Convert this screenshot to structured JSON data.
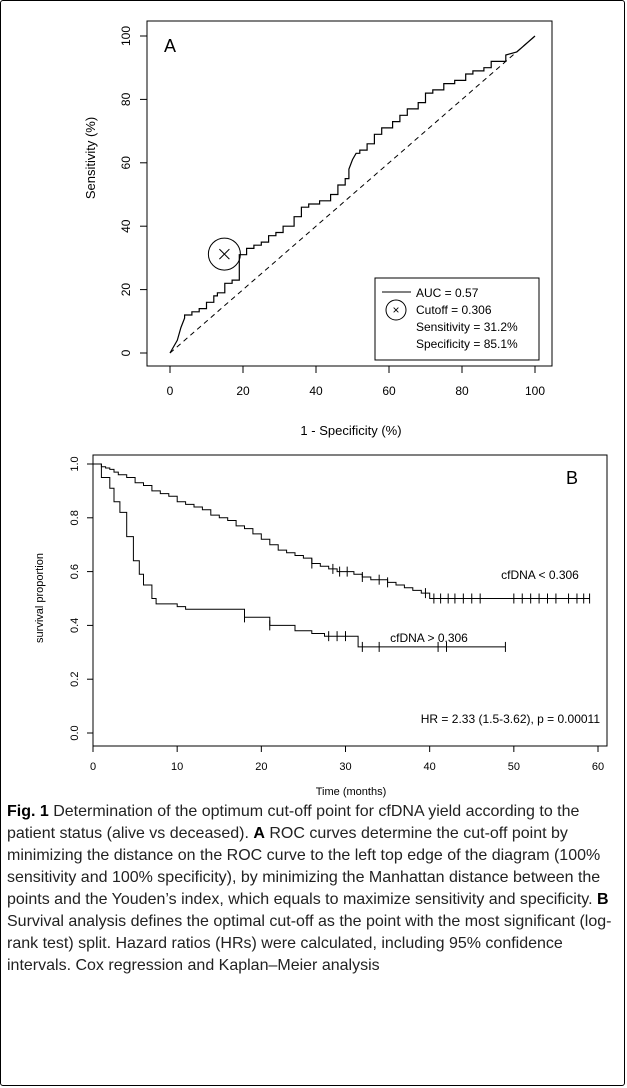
{
  "chart_data": [
    {
      "type": "line",
      "panel": "A",
      "xlabel": "1 - Specificity (%)",
      "ylabel": "Sensitivity (%)",
      "xlim": [
        0,
        100
      ],
      "ylim": [
        0,
        100
      ],
      "xticks": [
        "0",
        "20",
        "40",
        "60",
        "80",
        "100"
      ],
      "yticks": [
        "0",
        "20",
        "40",
        "60",
        "80",
        "100"
      ],
      "series": [
        {
          "x": [
            0,
            2,
            3,
            4,
            4,
            6,
            6,
            8,
            8,
            10,
            10,
            12,
            12,
            13,
            13,
            15,
            15,
            17,
            17,
            19,
            19,
            21,
            21,
            23,
            23,
            25,
            25,
            27,
            27,
            29,
            29,
            31,
            31,
            34,
            34,
            36,
            36,
            38,
            38,
            41,
            41,
            44,
            44,
            46,
            46,
            48,
            48,
            49,
            49,
            50,
            51,
            52,
            52,
            54,
            54,
            56,
            56,
            58,
            58,
            61,
            61,
            63,
            63,
            65,
            65,
            68,
            68,
            70,
            70,
            72,
            72,
            75,
            75,
            78,
            78,
            81,
            81,
            83,
            83,
            86,
            86,
            88,
            88,
            92,
            92,
            95,
            100
          ],
          "y": [
            0,
            4,
            8,
            11,
            12,
            12,
            13,
            13,
            14,
            14,
            16,
            16,
            18,
            18,
            19,
            19,
            22,
            22,
            23,
            23,
            31,
            31,
            33,
            33,
            34,
            34,
            35,
            35,
            37,
            37,
            38,
            38,
            40,
            40,
            43,
            43,
            46,
            46,
            47,
            47,
            48,
            48,
            50,
            50,
            53,
            53,
            55,
            55,
            58,
            61,
            63,
            63,
            64,
            64,
            66,
            66,
            69,
            69,
            71,
            71,
            73,
            73,
            75,
            75,
            77,
            77,
            79,
            79,
            82,
            82,
            83,
            83,
            85,
            85,
            86,
            86,
            88,
            88,
            89,
            89,
            90,
            90,
            92,
            92,
            94,
            95,
            100
          ]
        }
      ],
      "reference_line": {
        "x": [
          0,
          100
        ],
        "y": [
          0,
          100
        ],
        "style": "dashed"
      },
      "cutoff_point": {
        "x": 14.9,
        "y": 31.2
      },
      "legend": {
        "placement": "bottom-right",
        "entries": [
          "AUC = 0.57",
          "Cutoff = 0.306",
          "Sensitivity = 31.2%",
          "Specificity = 85.1%"
        ]
      },
      "panel_label": "A",
      "grid": false
    },
    {
      "type": "line",
      "panel": "B",
      "xlabel": "Time (months)",
      "ylabel": "survival proportion",
      "xlim": [
        0,
        60
      ],
      "ylim": [
        0,
        1
      ],
      "xticks": [
        "0",
        "10",
        "20",
        "30",
        "40",
        "50",
        "60"
      ],
      "yticks": [
        "0.0",
        "0.2",
        "0.4",
        "0.6",
        "0.8",
        "1.0"
      ],
      "series": [
        {
          "name": "cfDNA < 0.306",
          "x": [
            0,
            1,
            1.5,
            2,
            2.5,
            3,
            4,
            5,
            6,
            7,
            8,
            9,
            10,
            11,
            12,
            13,
            14,
            15,
            16,
            17,
            18,
            19,
            20,
            21,
            22,
            23,
            24,
            25,
            26,
            27,
            28,
            29,
            30,
            31,
            32,
            33,
            34,
            35,
            36,
            37,
            38,
            39,
            40,
            59
          ],
          "y": [
            1.0,
            0.99,
            0.985,
            0.98,
            0.97,
            0.96,
            0.95,
            0.93,
            0.92,
            0.9,
            0.89,
            0.88,
            0.86,
            0.85,
            0.84,
            0.83,
            0.81,
            0.8,
            0.79,
            0.77,
            0.76,
            0.74,
            0.72,
            0.7,
            0.68,
            0.67,
            0.66,
            0.65,
            0.63,
            0.62,
            0.61,
            0.6,
            0.6,
            0.59,
            0.58,
            0.57,
            0.57,
            0.56,
            0.55,
            0.54,
            0.53,
            0.52,
            0.5,
            0.5
          ],
          "censor_x": [
            26,
            28.5,
            29.3,
            30.2,
            32,
            34,
            35,
            39.5,
            40.5,
            41.3,
            42.2,
            43,
            44,
            45,
            46,
            50,
            51,
            52,
            53,
            54,
            55,
            56.5,
            57.5,
            58.3,
            59
          ]
        },
        {
          "name": "cfDNA > 0.306",
          "x": [
            0,
            1,
            2,
            2.5,
            3.2,
            4,
            4.8,
            5.5,
            6,
            7,
            7.5,
            9,
            10,
            10.5,
            11,
            15,
            18,
            21,
            24,
            26,
            27.5,
            31.5,
            49
          ],
          "y": [
            1.0,
            0.95,
            0.91,
            0.86,
            0.82,
            0.73,
            0.64,
            0.59,
            0.55,
            0.5,
            0.48,
            0.48,
            0.47,
            0.47,
            0.46,
            0.46,
            0.43,
            0.4,
            0.38,
            0.37,
            0.36,
            0.32,
            0.32
          ],
          "censor_x": [
            18,
            21,
            28,
            29,
            30,
            32,
            34,
            41,
            42,
            49
          ]
        }
      ],
      "annotation": "HR = 2.33 (1.5-3.62), p = 0.00011",
      "panel_label": "B",
      "grid": false
    }
  ],
  "caption": {
    "fig_label": "Fig. 1",
    "text_1": " Determination of the optimum cut-off point for cfDNA yield according to the patient status (alive vs deceased). ",
    "label_a": "A",
    "text_2": " ROC curves determine the cut-off point by minimizing the distance on the ROC curve to the left top edge of the diagram (100% sensitivity and 100% specificity), by minimizing the Manhattan distance between the points and the Youden’s index, which equals to maximize sensitivity and specificity. ",
    "label_b": "B",
    "text_3": " Survival analysis defines the optimal cut-off as the point with the most significant (log-rank test) split. Hazard ratios (HRs) were calculated, including 95% confidence intervals. Cox regression and Kaplan–Meier analysis"
  }
}
